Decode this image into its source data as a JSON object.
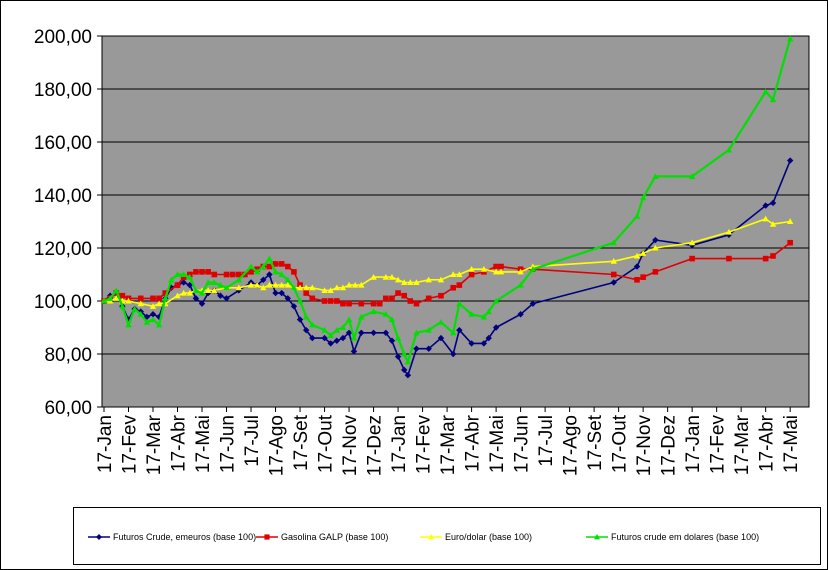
{
  "chart_data": {
    "type": "line",
    "ylim": [
      60,
      200
    ],
    "yticks": [
      "60,00",
      "80,00",
      "100,00",
      "120,00",
      "140,00",
      "160,00",
      "180,00",
      "200,00"
    ],
    "categories": [
      "17-Jan",
      "17-Fev",
      "17-Mar",
      "17-Abr",
      "17-Mai",
      "17-Jun",
      "17-Jul",
      "17-Ago",
      "17-Set",
      "17-Out",
      "17-Nov",
      "17-Dez",
      "17-Jan",
      "17-Fev",
      "17-Mar",
      "17-Abr",
      "17-Mai",
      "17-Jun",
      "17-Jul",
      "17-Ago",
      "17-Set",
      "17-Out",
      "17-Nov",
      "17-Dez",
      "17-Jan",
      "17-Fev",
      "17-Mar",
      "17-Abr",
      "17-Mai"
    ],
    "grid": true,
    "legend_position": "bottom",
    "plot_background": "#999999",
    "series": [
      {
        "name": "Futuros Crude, emeuros (base 100)",
        "color": "#000080",
        "marker": "diamond",
        "points": [
          [
            0,
            100
          ],
          [
            0.25,
            102
          ],
          [
            0.5,
            103
          ],
          [
            0.75,
            98
          ],
          [
            1,
            93
          ],
          [
            1.25,
            97
          ],
          [
            1.5,
            96
          ],
          [
            1.75,
            94
          ],
          [
            2,
            95
          ],
          [
            2.25,
            94
          ],
          [
            2.5,
            101
          ],
          [
            2.75,
            105
          ],
          [
            3,
            106
          ],
          [
            3.25,
            107
          ],
          [
            3.5,
            106
          ],
          [
            3.75,
            101
          ],
          [
            4,
            99
          ],
          [
            4.25,
            103
          ],
          [
            4.5,
            104
          ],
          [
            4.75,
            102
          ],
          [
            5,
            101
          ],
          [
            5.5,
            104
          ],
          [
            6,
            107
          ],
          [
            6.25,
            106
          ],
          [
            6.5,
            108
          ],
          [
            6.75,
            110
          ],
          [
            7,
            103
          ],
          [
            7.25,
            103
          ],
          [
            7.5,
            101
          ],
          [
            7.75,
            98
          ],
          [
            8,
            93
          ],
          [
            8.25,
            89
          ],
          [
            8.5,
            86
          ],
          [
            9,
            86
          ],
          [
            9.25,
            84
          ],
          [
            9.5,
            85
          ],
          [
            9.75,
            86
          ],
          [
            10,
            88
          ],
          [
            10.2,
            81
          ],
          [
            10.5,
            88
          ],
          [
            11,
            88
          ],
          [
            11.5,
            88
          ],
          [
            11.75,
            85
          ],
          [
            12,
            79
          ],
          [
            12.25,
            74
          ],
          [
            12.4,
            72
          ],
          [
            12.75,
            82
          ],
          [
            13.25,
            82
          ],
          [
            13.75,
            86
          ],
          [
            14.25,
            80
          ],
          [
            14.5,
            89
          ],
          [
            15,
            84
          ],
          [
            15.5,
            84
          ],
          [
            15.7,
            86
          ],
          [
            16,
            90
          ],
          [
            17,
            95
          ],
          [
            17.5,
            99
          ],
          [
            20.8,
            107
          ],
          [
            21.75,
            113
          ],
          [
            22,
            118
          ],
          [
            22.5,
            123
          ],
          [
            24,
            121
          ],
          [
            25.5,
            125
          ],
          [
            27,
            136
          ],
          [
            27.3,
            137
          ],
          [
            28,
            153
          ]
        ]
      },
      {
        "name": "Gasolina GALP (base 100)",
        "color": "#e00000",
        "marker": "square",
        "points": [
          [
            0,
            100
          ],
          [
            0.25,
            101
          ],
          [
            0.5,
            103
          ],
          [
            0.75,
            102
          ],
          [
            1,
            101
          ],
          [
            1.5,
            101
          ],
          [
            2,
            101
          ],
          [
            2.25,
            101
          ],
          [
            2.5,
            103
          ],
          [
            3,
            106
          ],
          [
            3.25,
            109
          ],
          [
            3.5,
            110
          ],
          [
            3.75,
            111
          ],
          [
            4,
            111
          ],
          [
            4.25,
            111
          ],
          [
            4.5,
            110
          ],
          [
            5,
            110
          ],
          [
            5.25,
            110
          ],
          [
            5.5,
            110
          ],
          [
            5.75,
            110
          ],
          [
            6,
            111
          ],
          [
            6.25,
            112
          ],
          [
            6.5,
            113
          ],
          [
            6.75,
            113
          ],
          [
            7,
            114
          ],
          [
            7.25,
            114
          ],
          [
            7.5,
            113
          ],
          [
            7.75,
            111
          ],
          [
            8,
            106
          ],
          [
            8.25,
            103
          ],
          [
            8.5,
            101
          ],
          [
            9,
            100
          ],
          [
            9.25,
            100
          ],
          [
            9.5,
            100
          ],
          [
            9.75,
            99
          ],
          [
            10,
            99
          ],
          [
            10.5,
            99
          ],
          [
            11,
            99
          ],
          [
            11.25,
            99
          ],
          [
            11.5,
            101
          ],
          [
            11.75,
            101
          ],
          [
            12,
            103
          ],
          [
            12.25,
            102
          ],
          [
            12.5,
            100
          ],
          [
            12.75,
            99
          ],
          [
            13.25,
            101
          ],
          [
            13.75,
            102
          ],
          [
            14.25,
            105
          ],
          [
            14.5,
            106
          ],
          [
            15,
            110
          ],
          [
            15.5,
            111
          ],
          [
            16,
            113
          ],
          [
            16.2,
            113
          ],
          [
            17,
            112
          ],
          [
            17.5,
            112
          ],
          [
            20.8,
            110
          ],
          [
            21.75,
            108
          ],
          [
            22,
            109
          ],
          [
            22.5,
            111
          ],
          [
            24,
            116
          ],
          [
            25.5,
            116
          ],
          [
            27,
            116
          ],
          [
            27.3,
            117
          ],
          [
            28,
            122
          ]
        ]
      },
      {
        "name": "Euro/dolar (base 100)",
        "color": "#ffff00",
        "marker": "triangle",
        "points": [
          [
            0,
            100
          ],
          [
            0.25,
            100
          ],
          [
            0.5,
            101
          ],
          [
            0.75,
            100
          ],
          [
            1,
            100
          ],
          [
            1.5,
            99
          ],
          [
            2,
            98
          ],
          [
            2.25,
            99
          ],
          [
            2.5,
            99
          ],
          [
            3,
            102
          ],
          [
            3.25,
            103
          ],
          [
            3.5,
            103
          ],
          [
            3.75,
            104
          ],
          [
            4,
            104
          ],
          [
            4.25,
            104
          ],
          [
            4.5,
            104
          ],
          [
            5,
            105
          ],
          [
            5.5,
            105
          ],
          [
            6,
            106
          ],
          [
            6.25,
            106
          ],
          [
            6.5,
            105
          ],
          [
            6.75,
            106
          ],
          [
            7,
            106
          ],
          [
            7.25,
            106
          ],
          [
            7.5,
            106
          ],
          [
            7.75,
            105
          ],
          [
            8,
            105
          ],
          [
            8.25,
            105
          ],
          [
            8.5,
            105
          ],
          [
            9,
            104
          ],
          [
            9.25,
            104
          ],
          [
            9.5,
            105
          ],
          [
            9.75,
            105
          ],
          [
            10,
            106
          ],
          [
            10.25,
            106
          ],
          [
            10.5,
            106
          ],
          [
            11,
            109
          ],
          [
            11.5,
            109
          ],
          [
            11.75,
            109
          ],
          [
            12,
            108
          ],
          [
            12.25,
            107
          ],
          [
            12.5,
            107
          ],
          [
            12.75,
            107
          ],
          [
            13.25,
            108
          ],
          [
            13.75,
            108
          ],
          [
            14.25,
            110
          ],
          [
            14.5,
            110
          ],
          [
            15,
            112
          ],
          [
            15.5,
            112
          ],
          [
            16,
            111
          ],
          [
            16.2,
            111
          ],
          [
            17,
            111
          ],
          [
            17.5,
            113
          ],
          [
            20.8,
            115
          ],
          [
            21.75,
            117
          ],
          [
            22,
            118
          ],
          [
            22.5,
            120
          ],
          [
            24,
            122
          ],
          [
            25.5,
            126
          ],
          [
            27,
            131
          ],
          [
            27.3,
            129
          ],
          [
            28,
            130
          ]
        ]
      },
      {
        "name": "Futuros crude em dolares (base 100)",
        "color": "#00e000",
        "marker": "triangle",
        "points": [
          [
            0,
            100
          ],
          [
            0.25,
            101
          ],
          [
            0.5,
            104
          ],
          [
            0.75,
            98
          ],
          [
            1,
            91
          ],
          [
            1.25,
            97
          ],
          [
            1.5,
            95
          ],
          [
            1.75,
            92
          ],
          [
            2,
            93
          ],
          [
            2.25,
            91
          ],
          [
            2.5,
            101
          ],
          [
            2.75,
            108
          ],
          [
            3,
            110
          ],
          [
            3.25,
            110
          ],
          [
            3.5,
            109
          ],
          [
            3.75,
            104
          ],
          [
            4,
            103
          ],
          [
            4.25,
            107
          ],
          [
            4.5,
            107
          ],
          [
            4.75,
            106
          ],
          [
            5,
            105
          ],
          [
            5.5,
            108
          ],
          [
            6,
            113
          ],
          [
            6.25,
            111
          ],
          [
            6.5,
            113
          ],
          [
            6.75,
            116
          ],
          [
            7,
            111
          ],
          [
            7.25,
            110
          ],
          [
            7.5,
            108
          ],
          [
            7.75,
            105
          ],
          [
            8,
            100
          ],
          [
            8.25,
            94
          ],
          [
            8.5,
            91
          ],
          [
            9,
            89
          ],
          [
            9.25,
            87
          ],
          [
            9.5,
            89
          ],
          [
            9.75,
            90
          ],
          [
            10,
            93
          ],
          [
            10.2,
            86
          ],
          [
            10.5,
            94
          ],
          [
            11,
            96
          ],
          [
            11.5,
            95
          ],
          [
            11.75,
            93
          ],
          [
            12,
            86
          ],
          [
            12.25,
            80
          ],
          [
            12.4,
            77
          ],
          [
            12.75,
            88
          ],
          [
            13.25,
            89
          ],
          [
            13.75,
            92
          ],
          [
            14.25,
            88
          ],
          [
            14.5,
            99
          ],
          [
            15,
            95
          ],
          [
            15.5,
            94
          ],
          [
            15.7,
            96
          ],
          [
            16,
            100
          ],
          [
            17,
            106
          ],
          [
            17.5,
            112
          ],
          [
            20.8,
            122
          ],
          [
            21.75,
            132
          ],
          [
            22,
            139
          ],
          [
            22.5,
            147
          ],
          [
            24,
            147
          ],
          [
            25.5,
            157
          ],
          [
            27,
            179
          ],
          [
            27.3,
            176
          ],
          [
            28,
            199
          ]
        ]
      }
    ]
  }
}
